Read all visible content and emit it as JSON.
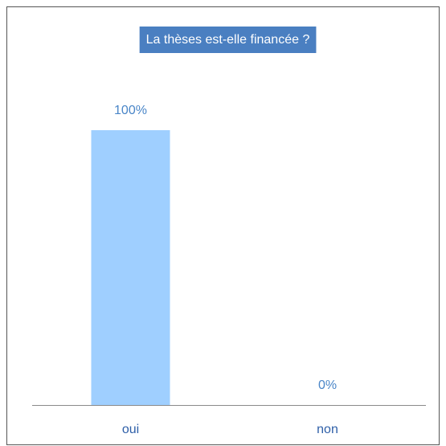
{
  "chart_data": {
    "type": "bar",
    "title": "La thèses est-elle financée ?",
    "categories": [
      "oui",
      "non"
    ],
    "values": [
      100,
      0
    ],
    "value_labels": [
      "100%",
      "0%"
    ],
    "color": "#9fcfff"
  }
}
